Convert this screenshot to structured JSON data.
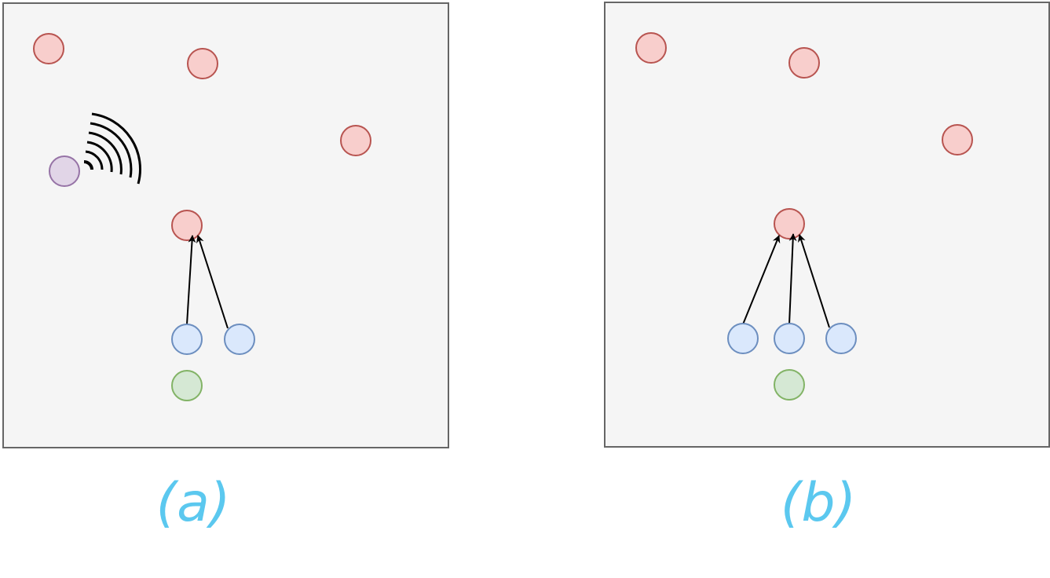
{
  "colors": {
    "panel_fill": "#f5f5f5",
    "panel_border": "#666666",
    "red_fill": "#f8cecc",
    "red_stroke": "#b85450",
    "blue_fill": "#dae8fc",
    "blue_stroke": "#6c8ebf",
    "green_fill": "#d5e8d4",
    "green_stroke": "#82b366",
    "purple_fill": "#e1d5e7",
    "purple_stroke": "#9673a6",
    "arrow": "#000000",
    "caption": "#5bc8ef"
  },
  "panels": [
    {
      "caption": "(a)",
      "red_nodes": 4,
      "blue_nodes": 2,
      "green_nodes": 1,
      "purple_nodes": 1,
      "icon": "wifi-signal-icon",
      "arrows_to_target": 2
    },
    {
      "caption": "(b)",
      "red_nodes": 4,
      "blue_nodes": 3,
      "green_nodes": 1,
      "purple_nodes": 0,
      "arrows_to_target": 3
    }
  ]
}
